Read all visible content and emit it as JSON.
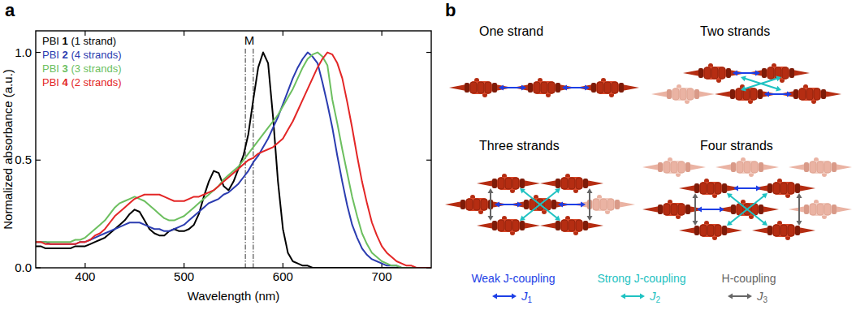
{
  "chart_data": {
    "type": "line",
    "panel_label": "a",
    "x_label": "Wavelength (nm)",
    "y_label": "Normalized absorbance (a.u.)",
    "xlim": [
      350,
      750
    ],
    "xticks": [
      400,
      500,
      600,
      700
    ],
    "ylim": [
      0,
      1.1
    ],
    "yticks": [
      {
        "value": 0,
        "label": "0.0"
      },
      {
        "value": 0.5,
        "label": "0.5"
      },
      {
        "value": 1,
        "label": "1.0"
      }
    ],
    "legend": "upper left",
    "annotations": [
      {
        "text": "M",
        "x": [
          562,
          570
        ],
        "line_style": "dashdot"
      }
    ],
    "x": [
      350,
      355,
      360,
      365,
      370,
      375,
      380,
      385,
      390,
      395,
      400,
      405,
      410,
      415,
      420,
      425,
      430,
      435,
      440,
      445,
      450,
      455,
      460,
      465,
      470,
      475,
      480,
      485,
      490,
      495,
      500,
      505,
      510,
      515,
      520,
      525,
      530,
      535,
      540,
      545,
      550,
      555,
      560,
      565,
      570,
      575,
      580,
      585,
      590,
      595,
      600,
      605,
      610,
      615,
      620,
      625,
      630,
      635,
      640,
      645,
      650,
      655,
      660,
      665,
      670,
      675,
      680,
      685,
      690,
      695,
      700,
      705,
      710,
      715,
      720,
      725,
      730,
      735,
      740,
      745,
      750
    ],
    "series": [
      {
        "name": "PBI 1 (1 strand)",
        "color": "#000000",
        "values": [
          0.1,
          0.1,
          0.09,
          0.09,
          0.09,
          0.09,
          0.09,
          0.09,
          0.1,
          0.1,
          0.1,
          0.11,
          0.12,
          0.13,
          0.14,
          0.16,
          0.18,
          0.2,
          0.22,
          0.25,
          0.27,
          0.26,
          0.22,
          0.18,
          0.16,
          0.15,
          0.15,
          0.17,
          0.18,
          0.17,
          0.17,
          0.18,
          0.2,
          0.25,
          0.33,
          0.4,
          0.45,
          0.44,
          0.38,
          0.36,
          0.4,
          0.46,
          0.52,
          0.62,
          0.78,
          0.93,
          1.0,
          0.95,
          0.7,
          0.4,
          0.18,
          0.07,
          0.03,
          0.02,
          0.01,
          0.01,
          0,
          0,
          0,
          0,
          0,
          0,
          0,
          0,
          0,
          0,
          0,
          0,
          0,
          0,
          0,
          0,
          0,
          0,
          0,
          0,
          0,
          0,
          0,
          0,
          0
        ]
      },
      {
        "name": "PBI 2 (4 strands)",
        "color": "#2b3cb0",
        "values": [
          0.12,
          0.12,
          0.12,
          0.11,
          0.11,
          0.11,
          0.11,
          0.11,
          0.11,
          0.12,
          0.12,
          0.13,
          0.14,
          0.15,
          0.16,
          0.17,
          0.18,
          0.19,
          0.2,
          0.21,
          0.21,
          0.21,
          0.2,
          0.19,
          0.18,
          0.18,
          0.17,
          0.17,
          0.18,
          0.19,
          0.2,
          0.22,
          0.24,
          0.26,
          0.28,
          0.3,
          0.31,
          0.32,
          0.34,
          0.35,
          0.37,
          0.39,
          0.42,
          0.45,
          0.49,
          0.52,
          0.56,
          0.6,
          0.65,
          0.7,
          0.76,
          0.82,
          0.88,
          0.93,
          0.97,
          1.0,
          0.98,
          0.95,
          0.86,
          0.76,
          0.65,
          0.52,
          0.4,
          0.29,
          0.2,
          0.14,
          0.09,
          0.06,
          0.04,
          0.03,
          0.02,
          0.01,
          0.01,
          0.01,
          0,
          0,
          0,
          0,
          0,
          0,
          0
        ]
      },
      {
        "name": "PBI 3 (3 strands)",
        "color": "#6cbf5f",
        "values": [
          0.12,
          0.12,
          0.12,
          0.12,
          0.12,
          0.12,
          0.12,
          0.12,
          0.13,
          0.13,
          0.14,
          0.16,
          0.18,
          0.2,
          0.22,
          0.25,
          0.28,
          0.3,
          0.31,
          0.32,
          0.33,
          0.32,
          0.31,
          0.29,
          0.27,
          0.25,
          0.23,
          0.22,
          0.22,
          0.23,
          0.24,
          0.26,
          0.28,
          0.3,
          0.32,
          0.34,
          0.36,
          0.38,
          0.41,
          0.43,
          0.45,
          0.47,
          0.5,
          0.53,
          0.56,
          0.59,
          0.62,
          0.65,
          0.68,
          0.71,
          0.75,
          0.79,
          0.83,
          0.88,
          0.93,
          0.97,
          0.99,
          1.0,
          0.98,
          0.94,
          0.78,
          0.67,
          0.55,
          0.44,
          0.33,
          0.24,
          0.16,
          0.11,
          0.07,
          0.05,
          0.03,
          0.02,
          0.01,
          0.01,
          0,
          0,
          0,
          0,
          0,
          0,
          0
        ]
      },
      {
        "name": "PBI 4 (2 strands)",
        "color": "#e32626",
        "values": [
          0.12,
          0.12,
          0.11,
          0.11,
          0.11,
          0.11,
          0.11,
          0.11,
          0.11,
          0.12,
          0.12,
          0.13,
          0.15,
          0.16,
          0.18,
          0.21,
          0.24,
          0.26,
          0.28,
          0.3,
          0.32,
          0.33,
          0.34,
          0.34,
          0.34,
          0.34,
          0.33,
          0.32,
          0.31,
          0.31,
          0.31,
          0.32,
          0.33,
          0.33,
          0.34,
          0.35,
          0.36,
          0.38,
          0.4,
          0.42,
          0.44,
          0.46,
          0.48,
          0.5,
          0.51,
          0.53,
          0.54,
          0.55,
          0.56,
          0.58,
          0.6,
          0.64,
          0.68,
          0.73,
          0.78,
          0.83,
          0.88,
          0.93,
          0.97,
          1.0,
          0.99,
          0.95,
          0.88,
          0.77,
          0.65,
          0.52,
          0.4,
          0.3,
          0.21,
          0.15,
          0.1,
          0.07,
          0.05,
          0.03,
          0.02,
          0.01,
          0.01,
          0,
          0,
          0,
          0
        ]
      }
    ]
  },
  "diagram": {
    "panel_label": "b",
    "panels": [
      {
        "title": "One strand"
      },
      {
        "title": "Two strands"
      },
      {
        "title": "Three strands"
      },
      {
        "title": "Four strands"
      }
    ],
    "legend": [
      {
        "label": "Weak J-coupling",
        "symbol": "J",
        "subscript": "1",
        "color": "#1d3fe6"
      },
      {
        "label": "Strong J-coupling",
        "symbol": "J",
        "subscript": "2",
        "color": "#1fc2c2"
      },
      {
        "label": "H-coupling",
        "symbol": "J",
        "subscript": "3",
        "color": "#666666"
      }
    ]
  }
}
